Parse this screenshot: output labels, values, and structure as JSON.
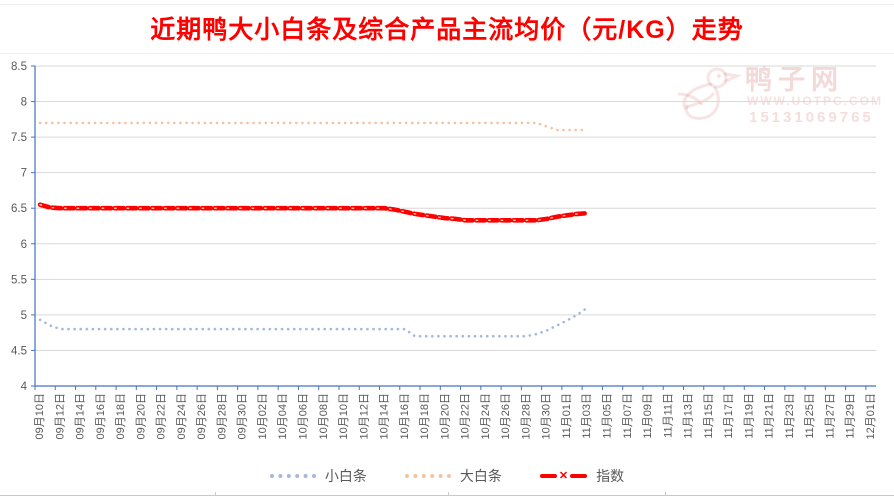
{
  "title": {
    "text": "近期鸭大小白条及综合产品主流均价（元/KG）走势",
    "color": "#FF0000"
  },
  "watermark": {
    "site": "鸭子网",
    "url": "www.uotpc.com",
    "phone": "15131069765"
  },
  "legend": {
    "items": [
      "小白条",
      "大白条",
      "指数"
    ]
  },
  "colors": {
    "small_strip": "#A6B8DC",
    "big_strip": "#F4C3A1",
    "index": "#FF0000",
    "grid": "#D9D9D9",
    "axis": "#4472C4",
    "tick_label": "#595959"
  },
  "chart_data": {
    "type": "line",
    "title": "近期鸭大小白条及综合产品主流均价（元/KG）走势",
    "ylabel": "",
    "xlabel": "",
    "ylim": [
      4,
      8.5
    ],
    "ytick_step": 0.5,
    "y_ticks": [
      "8.5",
      "8",
      "7.5",
      "7",
      "6.5",
      "6",
      "5.5",
      "5",
      "4.5",
      "4"
    ],
    "grid": true,
    "legend_position": "bottom",
    "x_label_interval_days": 2,
    "data_start_date": "09月10日",
    "data_end_date": "11月03日",
    "x_labels": [
      "09月10日",
      "09月12日",
      "09月14日",
      "09月16日",
      "09月18日",
      "09月20日",
      "09月22日",
      "09月24日",
      "09月26日",
      "09月28日",
      "09月30日",
      "10月02日",
      "10月04日",
      "10月06日",
      "10月08日",
      "10月10日",
      "10月12日",
      "10月14日",
      "10月16日",
      "10月18日",
      "10月20日",
      "10月22日",
      "10月24日",
      "10月26日",
      "10月28日",
      "10月30日",
      "11月01日",
      "11月03日",
      "11月05日",
      "11月07日",
      "11月09日",
      "11月11日",
      "11月13日",
      "11月15日",
      "11月17日",
      "11月19日",
      "11月21日",
      "11月23日",
      "11月25日",
      "11月27日",
      "11月29日",
      "12月01日"
    ],
    "series": [
      {
        "name": "小白条",
        "key": "xiaobaitiao",
        "color": "#A6B8DC",
        "style": "dotted",
        "values": [
          4.93,
          4.85,
          4.8,
          4.8,
          4.8,
          4.8,
          4.8,
          4.8,
          4.8,
          4.8,
          4.8,
          4.8,
          4.8,
          4.8,
          4.8,
          4.8,
          4.8,
          4.8,
          4.8,
          4.8,
          4.8,
          4.8,
          4.8,
          4.8,
          4.8,
          4.8,
          4.8,
          4.8,
          4.8,
          4.8,
          4.8,
          4.8,
          4.8,
          4.8,
          4.8,
          4.8,
          4.8,
          4.7,
          4.7,
          4.7,
          4.7,
          4.7,
          4.7,
          4.7,
          4.7,
          4.7,
          4.7,
          4.7,
          4.7,
          4.73,
          4.78,
          4.85,
          4.92,
          5.0,
          5.1
        ]
      },
      {
        "name": "大白条",
        "key": "dabaitiao",
        "color": "#F4C3A1",
        "style": "dotted",
        "values": [
          7.7,
          7.7,
          7.7,
          7.7,
          7.7,
          7.7,
          7.7,
          7.7,
          7.7,
          7.7,
          7.7,
          7.7,
          7.7,
          7.7,
          7.7,
          7.7,
          7.7,
          7.7,
          7.7,
          7.7,
          7.7,
          7.7,
          7.7,
          7.7,
          7.7,
          7.7,
          7.7,
          7.7,
          7.7,
          7.7,
          7.7,
          7.7,
          7.7,
          7.7,
          7.7,
          7.7,
          7.7,
          7.7,
          7.7,
          7.7,
          7.7,
          7.7,
          7.7,
          7.7,
          7.7,
          7.7,
          7.7,
          7.7,
          7.7,
          7.7,
          7.65,
          7.6,
          7.6,
          7.6,
          7.6
        ]
      },
      {
        "name": "指数",
        "key": "zhishu",
        "color": "#FF0000",
        "style": "index",
        "values": [
          6.55,
          6.51,
          6.5,
          6.5,
          6.5,
          6.5,
          6.5,
          6.5,
          6.5,
          6.5,
          6.5,
          6.5,
          6.5,
          6.5,
          6.5,
          6.5,
          6.5,
          6.5,
          6.5,
          6.5,
          6.5,
          6.5,
          6.5,
          6.5,
          6.5,
          6.5,
          6.5,
          6.5,
          6.5,
          6.5,
          6.5,
          6.5,
          6.5,
          6.5,
          6.5,
          6.48,
          6.45,
          6.42,
          6.4,
          6.38,
          6.36,
          6.35,
          6.33,
          6.33,
          6.33,
          6.33,
          6.33,
          6.33,
          6.33,
          6.33,
          6.35,
          6.38,
          6.4,
          6.42,
          6.43
        ]
      }
    ]
  }
}
